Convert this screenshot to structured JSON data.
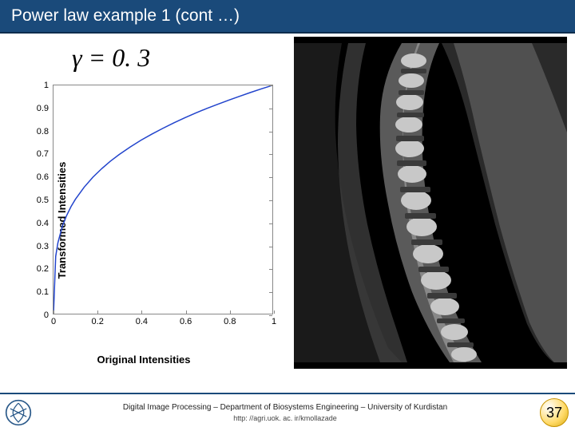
{
  "title": "Power law example 1 (cont …)",
  "gamma_label": "γ = 0. 3",
  "chart": {
    "type": "line",
    "y_label": "Transformed Intensities",
    "x_label": "Original Intensities",
    "xlim": [
      0,
      1
    ],
    "ylim": [
      0,
      1
    ],
    "x_ticks": [
      0,
      0.2,
      0.4,
      0.6,
      0.8,
      1
    ],
    "y_ticks": [
      0,
      0.1,
      0.2,
      0.3,
      0.4,
      0.5,
      0.6,
      0.7,
      0.8,
      0.9,
      1
    ],
    "line_color": "#2244cc",
    "line_width": 1.5,
    "border_color": "#888888",
    "tick_fontsize": 11,
    "label_fontsize": 13,
    "label_fontweight": "bold",
    "background_color": "#ffffff",
    "curve_points": [
      [
        0,
        0
      ],
      [
        0.01,
        0.251
      ],
      [
        0.02,
        0.31
      ],
      [
        0.04,
        0.382
      ],
      [
        0.06,
        0.43
      ],
      [
        0.08,
        0.469
      ],
      [
        0.1,
        0.501
      ],
      [
        0.14,
        0.554
      ],
      [
        0.18,
        0.598
      ],
      [
        0.22,
        0.635
      ],
      [
        0.26,
        0.668
      ],
      [
        0.3,
        0.697
      ],
      [
        0.35,
        0.73
      ],
      [
        0.4,
        0.76
      ],
      [
        0.45,
        0.787
      ],
      [
        0.5,
        0.812
      ],
      [
        0.55,
        0.836
      ],
      [
        0.6,
        0.858
      ],
      [
        0.65,
        0.879
      ],
      [
        0.7,
        0.899
      ],
      [
        0.75,
        0.917
      ],
      [
        0.8,
        0.935
      ],
      [
        0.85,
        0.952
      ],
      [
        0.9,
        0.969
      ],
      [
        0.95,
        0.985
      ],
      [
        1,
        1
      ]
    ]
  },
  "mri_image": {
    "description": "spine-mri-gamma-corrected",
    "background_color": "#000000"
  },
  "footer": {
    "line1": "Digital Image Processing – Department of Biosystems Engineering – University of Kurdistan",
    "line2": "http: //agri.uok. ac. ir/kmollazade",
    "page_number": "37",
    "border_color": "#1a4a7a"
  },
  "colors": {
    "title_bg": "#1a4a7a",
    "title_text": "#ffffff"
  }
}
